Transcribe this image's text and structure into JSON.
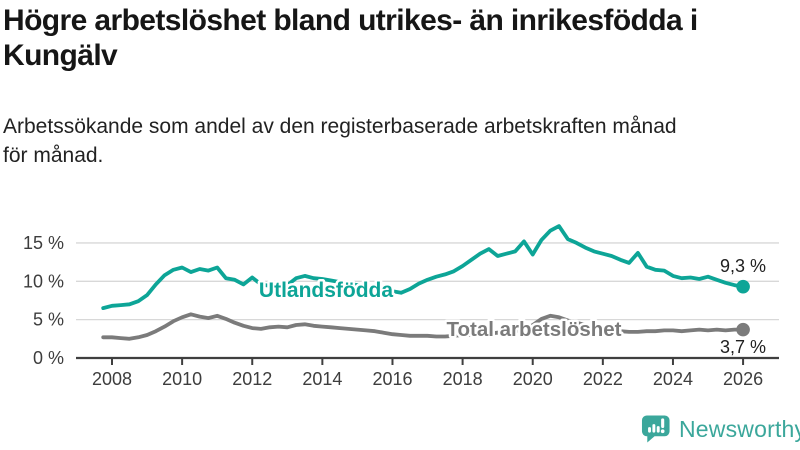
{
  "header": {
    "title": "Högre arbetslöshet bland utrikes- än inrikesfödda i\nKungälv",
    "subtitle": "Arbetssökande som andel av den registerbaserade arbetskraften månad\nför månad."
  },
  "chart_data": {
    "type": "line",
    "title": "Högre arbetslöshet bland utrikes- än inrikesfödda i Kungälv",
    "ylabel": "",
    "xlabel": "",
    "grid": "horizontal",
    "legend": "inline-labels",
    "x_start": 2007.75,
    "x_step": 0.25,
    "x_end": 2026.0,
    "xlim": [
      2007.0,
      2027.0
    ],
    "ylim": [
      0,
      18.5
    ],
    "x_ticks": [
      2008,
      2010,
      2012,
      2014,
      2016,
      2018,
      2020,
      2022,
      2024,
      2026
    ],
    "y_ticks": [
      0,
      5,
      10,
      15
    ],
    "y_tick_labels": [
      "0 %",
      "5 %",
      "10 %",
      "15 %"
    ],
    "series": [
      {
        "name": "Utlandsfödda",
        "slug": "utlandsfodda",
        "color": "#0da597",
        "end_label": "9,3 %",
        "values": [
          6.5,
          6.8,
          6.9,
          7.0,
          7.4,
          8.2,
          9.6,
          10.8,
          11.5,
          11.8,
          11.2,
          11.6,
          11.4,
          11.8,
          10.4,
          10.2,
          9.6,
          10.5,
          9.6,
          9.4,
          9.7,
          9.5,
          10.4,
          10.7,
          10.4,
          10.3,
          10.1,
          9.9,
          9.7,
          9.5,
          9.3,
          9.1,
          8.9,
          8.7,
          8.5,
          9.0,
          9.7,
          10.2,
          10.6,
          10.9,
          11.3,
          12.0,
          12.8,
          13.6,
          14.2,
          13.3,
          13.6,
          13.9,
          15.2,
          13.5,
          15.4,
          16.6,
          17.2,
          15.5,
          15.0,
          14.4,
          13.9,
          13.6,
          13.3,
          12.8,
          12.4,
          13.7,
          11.9,
          11.5,
          11.4,
          10.7,
          10.4,
          10.5,
          10.3,
          10.6,
          10.2,
          9.8,
          9.5,
          9.3
        ]
      },
      {
        "name": "Total arbetslöshet",
        "slug": "total-arbetsloshet",
        "color": "#7b7b7b",
        "end_label": "3,7 %",
        "values": [
          2.7,
          2.7,
          2.6,
          2.5,
          2.7,
          3.0,
          3.5,
          4.1,
          4.8,
          5.3,
          5.7,
          5.4,
          5.2,
          5.5,
          5.1,
          4.6,
          4.2,
          3.9,
          3.8,
          4.0,
          4.1,
          4.0,
          4.3,
          4.4,
          4.2,
          4.1,
          4.0,
          3.9,
          3.8,
          3.7,
          3.6,
          3.5,
          3.3,
          3.1,
          3.0,
          2.9,
          2.9,
          2.9,
          2.8,
          2.8,
          2.9,
          3.0,
          3.0,
          3.1,
          3.2,
          3.3,
          3.4,
          3.5,
          3.7,
          4.3,
          5.1,
          5.5,
          5.3,
          4.9,
          4.6,
          4.3,
          4.0,
          3.8,
          3.6,
          3.5,
          3.4,
          3.4,
          3.5,
          3.5,
          3.6,
          3.6,
          3.5,
          3.6,
          3.7,
          3.6,
          3.7,
          3.6,
          3.7,
          3.7
        ]
      }
    ]
  },
  "footer": {
    "brand": "Newsworthy"
  },
  "colors": {
    "accent_teal": "#0da597",
    "series_gray": "#7b7b7b",
    "brand_teal": "#3ba79b",
    "axis_text": "#3d3d3d",
    "grid_line": "#d8d8d8",
    "axis_line": "#3f3f3f",
    "value_label": "#1f1f1f"
  }
}
